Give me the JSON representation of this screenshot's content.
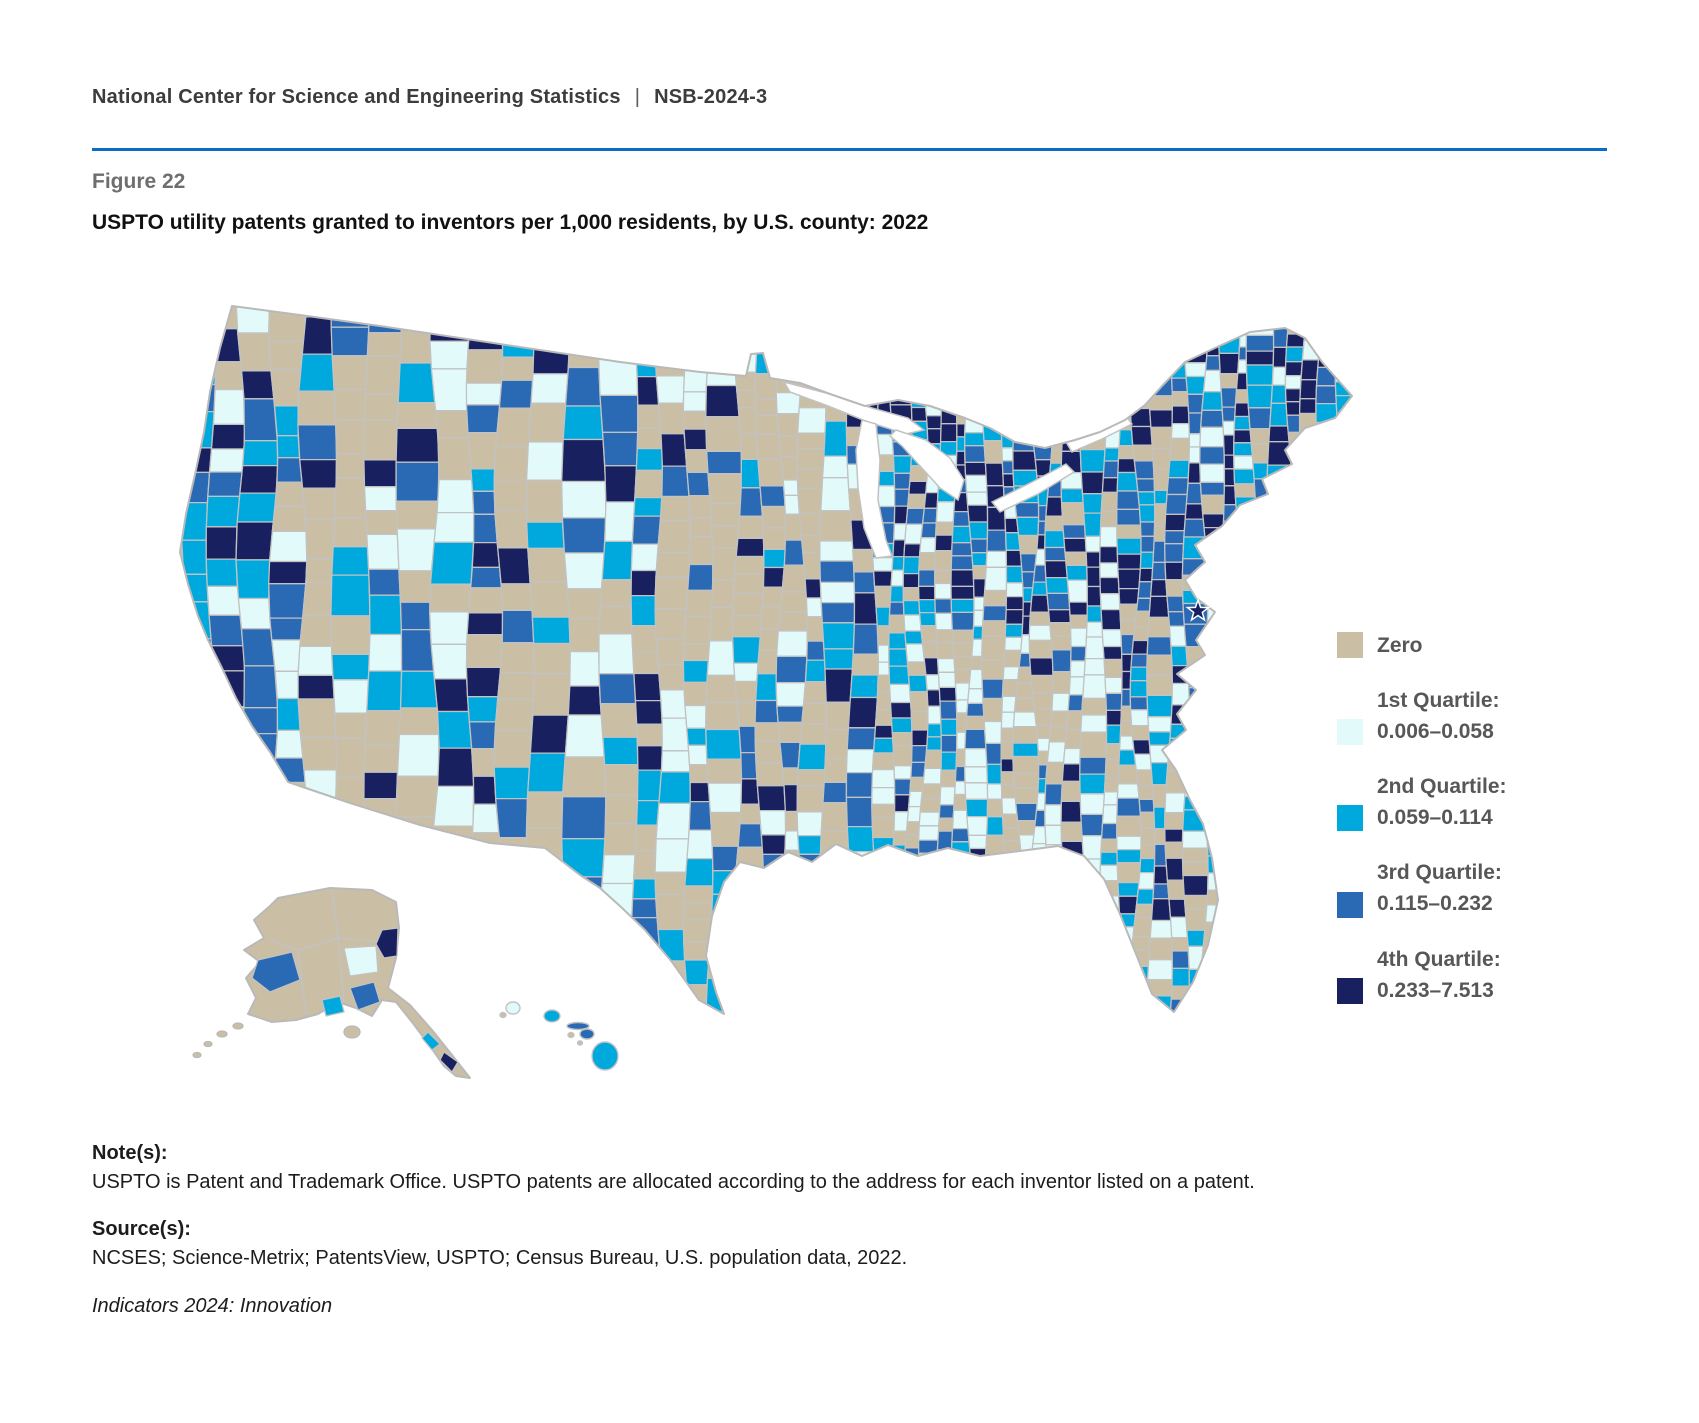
{
  "page": {
    "background": "#ffffff"
  },
  "header": {
    "org": "National Center for Science and Engineering Statistics",
    "divider": "|",
    "report_id": "NSB-2024-3",
    "rule_color": "#0b6cc8"
  },
  "figure": {
    "label": "Figure 22",
    "title": "USPTO utility patents granted to inventors per 1,000 residents, by U.S. county: 2022"
  },
  "legend": {
    "items": [
      {
        "label": "Zero",
        "range": "",
        "color": "#cabfa5"
      },
      {
        "label": "1st Quartile:",
        "range": "0.006–0.058",
        "color": "#e2fbfa"
      },
      {
        "label": "2nd Quartile:",
        "range": "0.059–0.114",
        "color": "#00a9dd"
      },
      {
        "label": "3rd Quartile:",
        "range": "0.115–0.232",
        "color": "#2a6ab4"
      },
      {
        "label": "4th Quartile:",
        "range": "0.233–7.513",
        "color": "#18205f"
      }
    ]
  },
  "map": {
    "type": "county-choropleth",
    "colors": {
      "zero": "#cabfa5",
      "q1": "#e2fbfa",
      "q2": "#00a9dd",
      "q3": "#2a6ab4",
      "q4": "#18205f",
      "county_border": "#c2c2c2",
      "coast_outline": "#b9b9b9",
      "water": "#ffffff",
      "dc_star": "#18205f"
    }
  },
  "notes": {
    "heading": "Note(s):",
    "text": "USPTO is Patent and Trademark Office. USPTO patents are allocated according to the address for each inventor listed on a patent."
  },
  "sources": {
    "heading": "Source(s):",
    "text": "NCSES; Science-Metrix; PatentsView, USPTO; Census Bureau, U.S. population data, 2022."
  },
  "series": {
    "text": "Indicators 2024: Innovation"
  }
}
